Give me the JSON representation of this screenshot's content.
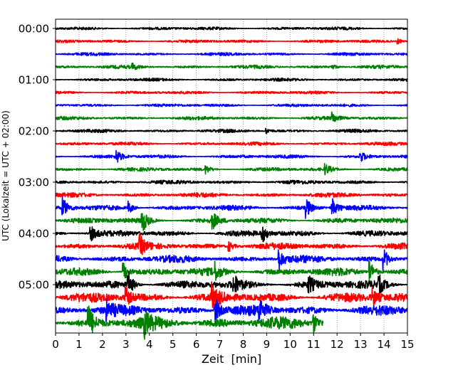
{
  "chart_data": {
    "type": "line",
    "subtype": "helicorder",
    "xlabel": "Zeit  [min]",
    "ylabel": "UTC (Lokalzeit = UTC + 02:00)",
    "xlim": [
      0,
      15
    ],
    "xticks": [
      0,
      1,
      2,
      3,
      4,
      5,
      6,
      7,
      8,
      9,
      10,
      11,
      12,
      13,
      14,
      15
    ],
    "yticks": [
      "00:00",
      "01:00",
      "02:00",
      "03:00",
      "04:00",
      "05:00"
    ],
    "grid": "vertical dotted",
    "colors": [
      "#000000",
      "#ff0000",
      "#0000ff",
      "#008000"
    ],
    "row_minutes": 15,
    "last_trace_end_min": 11.4,
    "rows": [
      {
        "start": "00:00",
        "noise": 0.1,
        "events": []
      },
      {
        "start": "00:15",
        "noise": 0.1,
        "events": [
          [
            14.6,
            0.2
          ]
        ]
      },
      {
        "start": "00:30",
        "noise": 0.1,
        "events": []
      },
      {
        "start": "00:45",
        "noise": 0.11,
        "events": [
          [
            3.3,
            0.2
          ],
          [
            11.8,
            0.2
          ]
        ]
      },
      {
        "start": "01:00",
        "noise": 0.1,
        "events": []
      },
      {
        "start": "01:15",
        "noise": 0.1,
        "events": []
      },
      {
        "start": "01:30",
        "noise": 0.1,
        "events": []
      },
      {
        "start": "01:45",
        "noise": 0.11,
        "events": [
          [
            11.8,
            0.4
          ]
        ]
      },
      {
        "start": "02:00",
        "noise": 0.11,
        "events": [
          [
            9.0,
            0.2
          ]
        ]
      },
      {
        "start": "02:15",
        "noise": 0.11,
        "events": []
      },
      {
        "start": "02:30",
        "noise": 0.12,
        "events": [
          [
            2.6,
            0.5
          ],
          [
            13.0,
            0.4
          ]
        ]
      },
      {
        "start": "02:45",
        "noise": 0.12,
        "events": [
          [
            6.4,
            0.3
          ],
          [
            11.5,
            0.4
          ]
        ]
      },
      {
        "start": "03:00",
        "noise": 0.13,
        "events": []
      },
      {
        "start": "03:15",
        "noise": 0.15,
        "events": []
      },
      {
        "start": "03:30",
        "noise": 0.17,
        "events": [
          [
            0.3,
            0.8
          ],
          [
            3.1,
            0.5
          ],
          [
            10.7,
            0.7
          ],
          [
            11.8,
            0.7
          ]
        ]
      },
      {
        "start": "03:45",
        "noise": 0.18,
        "events": [
          [
            3.7,
            0.9
          ],
          [
            6.7,
            0.6
          ]
        ]
      },
      {
        "start": "04:00",
        "noise": 0.2,
        "events": [
          [
            1.5,
            0.6
          ],
          [
            8.8,
            0.7
          ]
        ]
      },
      {
        "start": "04:15",
        "noise": 0.22,
        "events": [
          [
            3.6,
            0.7
          ],
          [
            7.4,
            0.4
          ]
        ]
      },
      {
        "start": "04:30",
        "noise": 0.24,
        "events": [
          [
            9.5,
            0.9
          ],
          [
            14.0,
            0.8
          ]
        ]
      },
      {
        "start": "04:45",
        "noise": 0.26,
        "events": [
          [
            2.9,
            0.7
          ],
          [
            6.8,
            0.6
          ],
          [
            13.4,
            0.9
          ]
        ]
      },
      {
        "start": "05:00",
        "noise": 0.28,
        "events": [
          [
            3.1,
            0.9
          ],
          [
            7.6,
            0.7
          ],
          [
            10.8,
            0.6
          ],
          [
            13.8,
            0.6
          ]
        ]
      },
      {
        "start": "05:15",
        "noise": 0.32,
        "events": [
          [
            3.0,
            0.7
          ],
          [
            6.7,
            0.9
          ],
          [
            13.5,
            0.6
          ]
        ]
      },
      {
        "start": "05:30",
        "noise": 0.34,
        "events": [
          [
            2.2,
            0.6
          ],
          [
            6.8,
            1.0
          ],
          [
            8.7,
            0.8
          ]
        ]
      },
      {
        "start": "05:45",
        "noise": 0.4,
        "events": [
          [
            1.4,
            1.3
          ],
          [
            3.8,
            0.8
          ],
          [
            11.0,
            0.7
          ]
        ]
      }
    ]
  }
}
